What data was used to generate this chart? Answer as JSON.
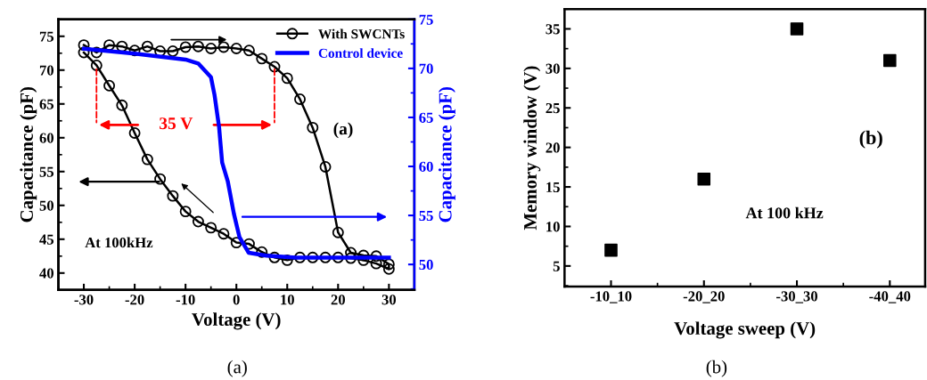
{
  "chart_data": [
    {
      "type": "line",
      "xlabel": "Voltage (V)",
      "ylabel": "Capacitance (pF)",
      "y2label": "Capacitance (pF)",
      "xlim": [
        -35,
        35
      ],
      "xticks": [
        -30,
        -20,
        -10,
        0,
        10,
        20,
        30
      ],
      "ylim": [
        37.5,
        77.5
      ],
      "yticks": [
        40,
        45,
        50,
        55,
        60,
        65,
        70,
        75
      ],
      "y2lim": [
        47.4,
        75
      ],
      "y2ticks": [
        50,
        55,
        60,
        65,
        70,
        75
      ],
      "grid": false,
      "legend": "top right",
      "annotations": [
        "35 V",
        "(a)",
        "At 100kHz",
        "(a)"
      ],
      "series": [
        {
          "name": "With SWCNTs",
          "color": "#000000",
          "marker": "circle",
          "x": [
            -30,
            -27.5,
            -25,
            -22.5,
            -20,
            -17.5,
            -15,
            -12.5,
            -10,
            -7.5,
            -5,
            -2.5,
            0,
            2.5,
            5,
            7.5,
            10,
            12.5,
            15,
            17.5,
            20,
            22.5,
            25,
            27.5,
            30,
            30,
            27.5,
            25,
            22.5,
            20,
            17.5,
            15,
            12.5,
            10,
            7.5,
            5,
            2.5,
            0,
            -2.5,
            -5,
            -7.5,
            -10,
            -12.5,
            -15,
            -17.5,
            -20,
            -22.5,
            -25,
            -27.5,
            -30
          ],
          "values": [
            73.7,
            72.6,
            73.7,
            73.5,
            72.9,
            73.5,
            72.8,
            72.8,
            73.4,
            73.5,
            73.2,
            73.4,
            73.2,
            72.9,
            71.7,
            70.5,
            68.8,
            65.7,
            61.5,
            55.7,
            46.0,
            43.0,
            42.6,
            42.5,
            41.3,
            40.6,
            41.4,
            41.9,
            42.2,
            42.3,
            42.3,
            42.3,
            42.3,
            41.9,
            42.3,
            43.1,
            44.3,
            44.5,
            45.8,
            46.7,
            47.6,
            49.1,
            51.4,
            53.9,
            56.8,
            60.7,
            64.8,
            67.7,
            70.7,
            72.6
          ]
        },
        {
          "name": "Control device",
          "color": "#0000ff",
          "axis": "y2",
          "marker": "none",
          "x": [
            -30,
            -20,
            -10,
            -7.5,
            -5,
            -4.3,
            -3.4,
            -2.8,
            -1.7,
            -0.5,
            0.6,
            2.4,
            5.9,
            11.7,
            30
          ],
          "values": [
            72.0,
            71.5,
            70.9,
            70.5,
            69.1,
            67.3,
            64.0,
            60.4,
            58.5,
            55.2,
            52.8,
            51.2,
            50.9,
            50.7,
            50.7
          ]
        }
      ]
    },
    {
      "type": "scatter",
      "xlabel": "Voltage sweep (V)",
      "ylabel": "Memory window (V)",
      "marker": "square",
      "grid": false,
      "categories": [
        "-10_10",
        "-20_20",
        "-30_30",
        "-40_40"
      ],
      "values": [
        7,
        16,
        35,
        31
      ],
      "color": "#000000",
      "ylim": [
        2.4,
        37.5
      ],
      "yticks": [
        5,
        10,
        15,
        20,
        25,
        30,
        35
      ],
      "annotations": [
        "(b)",
        "At 100 kHz",
        "(b)"
      ]
    }
  ]
}
